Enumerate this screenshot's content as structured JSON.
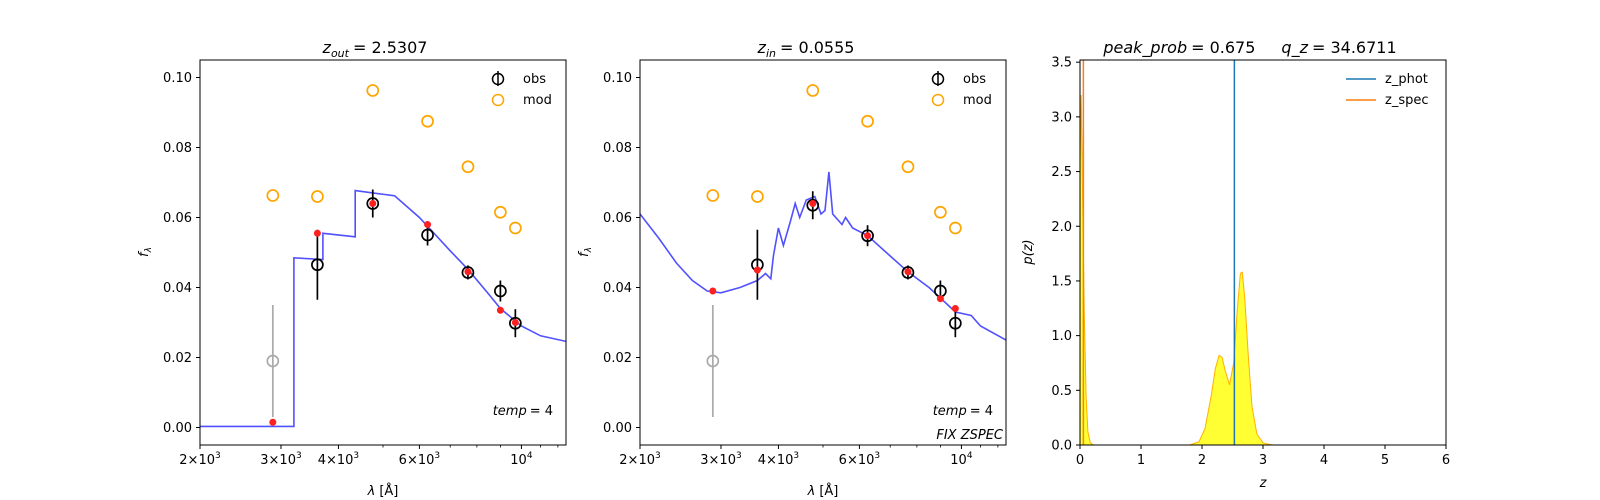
{
  "chart_data": [
    {
      "type": "scatter",
      "title": "z_out = 2.5307",
      "title_parts": {
        "sym": "z",
        "sub": "out",
        "value": "= 2.5307"
      },
      "xlabel_parts": {
        "sym": "λ",
        "unit": "[Å]"
      },
      "ylabel_parts": {
        "sym": "f",
        "sub": "λ"
      },
      "xscale": "log",
      "xlim": [
        2000,
        12500
      ],
      "ylim": [
        -0.005,
        0.105
      ],
      "xticks": [
        {
          "value": 2000,
          "mantissa": "2",
          "exp": "3"
        },
        {
          "value": 3000,
          "mantissa": "3",
          "exp": "3"
        },
        {
          "value": 4000,
          "mantissa": "4",
          "exp": "3"
        },
        {
          "value": 6000,
          "mantissa": "6",
          "exp": "3"
        },
        {
          "value": 10000,
          "mantissa": "",
          "exp": "4"
        }
      ],
      "yticks": [
        {
          "value": 0.0,
          "label": "0.00"
        },
        {
          "value": 0.02,
          "label": "0.02"
        },
        {
          "value": 0.04,
          "label": "0.04"
        },
        {
          "value": 0.06,
          "label": "0.06"
        },
        {
          "value": 0.08,
          "label": "0.08"
        },
        {
          "value": 0.1,
          "label": "0.10"
        }
      ],
      "legend": {
        "position": "top-right",
        "entries": [
          {
            "label": "obs",
            "color": "#000000"
          },
          {
            "label": "mod",
            "color": "#ffa500"
          }
        ]
      },
      "annotations": [
        {
          "text_sym": "temp",
          "text_value": "= 4",
          "position": "lower-right"
        }
      ],
      "series": [
        {
          "name": "obs",
          "color": "#000000",
          "points": [
            {
              "x": 3600,
              "y": 0.0465,
              "err": 0.01
            },
            {
              "x": 4750,
              "y": 0.064,
              "err": 0.004
            },
            {
              "x": 6250,
              "y": 0.055,
              "err": 0.003
            },
            {
              "x": 7650,
              "y": 0.0443,
              "err": 0.002
            },
            {
              "x": 9000,
              "y": 0.039,
              "err": 0.003
            },
            {
              "x": 9700,
              "y": 0.0298,
              "err": 0.004
            }
          ]
        },
        {
          "name": "obs_upper",
          "color": "#aaaaaa",
          "points": [
            {
              "x": 2880,
              "y": 0.019,
              "err": 0.016
            }
          ]
        },
        {
          "name": "mod",
          "color": "#ffa500",
          "points": [
            {
              "x": 2880,
              "y": 0.0663
            },
            {
              "x": 3600,
              "y": 0.066
            },
            {
              "x": 4750,
              "y": 0.0963
            },
            {
              "x": 6250,
              "y": 0.0875
            },
            {
              "x": 7650,
              "y": 0.0745
            },
            {
              "x": 9000,
              "y": 0.0615
            },
            {
              "x": 9700,
              "y": 0.057
            }
          ]
        },
        {
          "name": "model_flux",
          "color": "#ff2020",
          "points": [
            {
              "x": 2880,
              "y": 0.0015
            },
            {
              "x": 3600,
              "y": 0.0555
            },
            {
              "x": 4750,
              "y": 0.064
            },
            {
              "x": 6250,
              "y": 0.058
            },
            {
              "x": 7650,
              "y": 0.0445
            },
            {
              "x": 9000,
              "y": 0.0335
            },
            {
              "x": 9700,
              "y": 0.03
            }
          ]
        },
        {
          "name": "template",
          "color": "#3333ff",
          "line": [
            [
              2000,
              0.0003
            ],
            [
              3200,
              0.0003
            ],
            [
              3200,
              0.0485
            ],
            [
              3700,
              0.048
            ],
            [
              3700,
              0.0555
            ],
            [
              4350,
              0.0545
            ],
            [
              4350,
              0.0677
            ],
            [
              5300,
              0.0662
            ],
            [
              6000,
              0.06
            ],
            [
              7000,
              0.0505
            ],
            [
              7650,
              0.0452
            ],
            [
              8500,
              0.038
            ],
            [
              9000,
              0.034
            ],
            [
              10000,
              0.029
            ],
            [
              11000,
              0.0262
            ],
            [
              12500,
              0.0246
            ]
          ]
        }
      ]
    },
    {
      "type": "scatter",
      "title": "z_in = 0.0555",
      "title_parts": {
        "sym": "z",
        "sub": "in",
        "value": "= 0.0555"
      },
      "xlabel_parts": {
        "sym": "λ",
        "unit": "[Å]"
      },
      "ylabel_parts": {
        "sym": "f",
        "sub": "λ"
      },
      "xscale": "log",
      "xlim": [
        2000,
        12500
      ],
      "ylim": [
        -0.005,
        0.105
      ],
      "xticks": [
        {
          "value": 2000,
          "mantissa": "2",
          "exp": "3"
        },
        {
          "value": 3000,
          "mantissa": "3",
          "exp": "3"
        },
        {
          "value": 4000,
          "mantissa": "4",
          "exp": "3"
        },
        {
          "value": 6000,
          "mantissa": "6",
          "exp": "3"
        },
        {
          "value": 10000,
          "mantissa": "",
          "exp": "4"
        }
      ],
      "yticks": [
        {
          "value": 0.0,
          "label": "0.00"
        },
        {
          "value": 0.02,
          "label": "0.02"
        },
        {
          "value": 0.04,
          "label": "0.04"
        },
        {
          "value": 0.06,
          "label": "0.06"
        },
        {
          "value": 0.08,
          "label": "0.08"
        },
        {
          "value": 0.1,
          "label": "0.10"
        }
      ],
      "legend": {
        "position": "top-right",
        "entries": [
          {
            "label": "obs",
            "color": "#000000"
          },
          {
            "label": "mod",
            "color": "#ffa500"
          }
        ]
      },
      "annotations": [
        {
          "text_sym": "temp",
          "text_value": "= 4",
          "position": "lower-right"
        },
        {
          "text": "FIX ZSPEC",
          "position": "bottom-right"
        }
      ],
      "series": [
        {
          "name": "obs",
          "color": "#000000",
          "points": [
            {
              "x": 3600,
              "y": 0.0465,
              "err": 0.01
            },
            {
              "x": 4750,
              "y": 0.0635,
              "err": 0.004
            },
            {
              "x": 6250,
              "y": 0.0548,
              "err": 0.003
            },
            {
              "x": 7650,
              "y": 0.0443,
              "err": 0.002
            },
            {
              "x": 9000,
              "y": 0.039,
              "err": 0.003
            },
            {
              "x": 9700,
              "y": 0.0298,
              "err": 0.004
            }
          ]
        },
        {
          "name": "obs_upper",
          "color": "#aaaaaa",
          "points": [
            {
              "x": 2880,
              "y": 0.019,
              "err": 0.016
            }
          ]
        },
        {
          "name": "mod",
          "color": "#ffa500",
          "points": [
            {
              "x": 2880,
              "y": 0.0663
            },
            {
              "x": 3600,
              "y": 0.066
            },
            {
              "x": 4750,
              "y": 0.0963
            },
            {
              "x": 6250,
              "y": 0.0875
            },
            {
              "x": 7650,
              "y": 0.0745
            },
            {
              "x": 9000,
              "y": 0.0615
            },
            {
              "x": 9700,
              "y": 0.057
            }
          ]
        },
        {
          "name": "model_flux",
          "color": "#ff2020",
          "points": [
            {
              "x": 2880,
              "y": 0.039
            },
            {
              "x": 3600,
              "y": 0.045
            },
            {
              "x": 4750,
              "y": 0.064
            },
            {
              "x": 6250,
              "y": 0.0548
            },
            {
              "x": 7650,
              "y": 0.0445
            },
            {
              "x": 9000,
              "y": 0.0368
            },
            {
              "x": 9700,
              "y": 0.034
            }
          ]
        },
        {
          "name": "template",
          "color": "#3333ff",
          "line": [
            [
              2000,
              0.061
            ],
            [
              2200,
              0.054
            ],
            [
              2400,
              0.047
            ],
            [
              2600,
              0.042
            ],
            [
              2800,
              0.039
            ],
            [
              3000,
              0.0385
            ],
            [
              3300,
              0.04
            ],
            [
              3600,
              0.042
            ],
            [
              3750,
              0.044
            ],
            [
              3850,
              0.0425
            ],
            [
              3900,
              0.049
            ],
            [
              4000,
              0.057
            ],
            [
              4100,
              0.052
            ],
            [
              4250,
              0.059
            ],
            [
              4350,
              0.064
            ],
            [
              4450,
              0.06
            ],
            [
              4600,
              0.065
            ],
            [
              4800,
              0.066
            ],
            [
              4950,
              0.061
            ],
            [
              5050,
              0.062
            ],
            [
              5150,
              0.073
            ],
            [
              5250,
              0.061
            ],
            [
              5500,
              0.058
            ],
            [
              5600,
              0.06
            ],
            [
              5800,
              0.057
            ],
            [
              6250,
              0.0548
            ],
            [
              7000,
              0.049
            ],
            [
              7650,
              0.0445
            ],
            [
              8500,
              0.04
            ],
            [
              9000,
              0.037
            ],
            [
              9700,
              0.033
            ],
            [
              10500,
              0.032
            ],
            [
              11000,
              0.029
            ],
            [
              12500,
              0.025
            ]
          ]
        }
      ]
    },
    {
      "type": "area",
      "title": "peak_prob = 0.675     q_z = 34.6711",
      "title_parts": {
        "sym1": "peak_prob",
        "value1": "= 0.675",
        "sym2": "q_z",
        "value2": "= 34.6711"
      },
      "xlabel": "z",
      "ylabel": "p(z)",
      "xlim": [
        0,
        6
      ],
      "ylim": [
        0,
        3.52
      ],
      "xticks": [
        0,
        1,
        2,
        3,
        4,
        5,
        6
      ],
      "yticks": [
        "0.0",
        "0.5",
        "1.0",
        "1.5",
        "2.0",
        "2.5",
        "3.0",
        "3.5"
      ],
      "legend": {
        "position": "top-right",
        "entries": [
          {
            "label": "z_phot",
            "color": "#1f77b4"
          },
          {
            "label": "z_spec",
            "color": "#ff7f0e"
          }
        ]
      },
      "vlines": [
        {
          "name": "z_phot",
          "x": 2.5307,
          "color": "#1f77b4"
        },
        {
          "name": "z_spec",
          "x": 0.0555,
          "color": "#ff7f0e"
        }
      ],
      "pdf": {
        "fill": "#ffff33",
        "edge": "#ffb000",
        "points": [
          [
            0.0,
            2.6
          ],
          [
            0.02,
            3.2
          ],
          [
            0.04,
            2.4
          ],
          [
            0.07,
            1.2
          ],
          [
            0.1,
            0.45
          ],
          [
            0.13,
            0.12
          ],
          [
            0.17,
            0.02
          ],
          [
            0.22,
            0.0
          ],
          [
            1.8,
            0.0
          ],
          [
            1.95,
            0.03
          ],
          [
            2.05,
            0.15
          ],
          [
            2.15,
            0.45
          ],
          [
            2.22,
            0.7
          ],
          [
            2.28,
            0.82
          ],
          [
            2.33,
            0.8
          ],
          [
            2.38,
            0.68
          ],
          [
            2.45,
            0.55
          ],
          [
            2.52,
            0.75
          ],
          [
            2.58,
            1.25
          ],
          [
            2.63,
            1.57
          ],
          [
            2.66,
            1.58
          ],
          [
            2.7,
            1.35
          ],
          [
            2.76,
            0.8
          ],
          [
            2.82,
            0.35
          ],
          [
            2.9,
            0.1
          ],
          [
            3.0,
            0.02
          ],
          [
            3.15,
            0.0
          ],
          [
            5.0,
            0.0
          ]
        ]
      }
    }
  ]
}
